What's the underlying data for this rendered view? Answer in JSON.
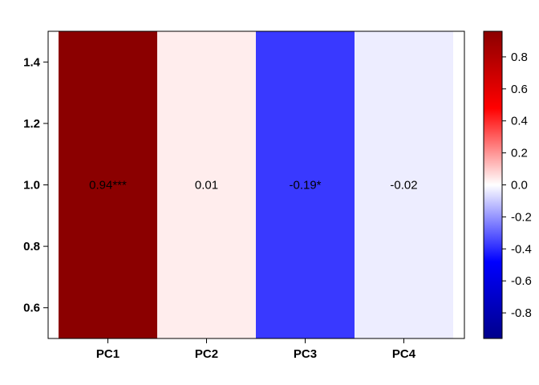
{
  "chart_data": {
    "type": "heatmap",
    "title": "",
    "xlabel": "",
    "ylabel": "",
    "categories": [
      "PC1",
      "PC2",
      "PC3",
      "PC4"
    ],
    "y_value": 1.0,
    "ylim": [
      0.5,
      1.5
    ],
    "y_ticks": [
      "0.6",
      "0.8",
      "1.0",
      "1.2",
      "1.4"
    ],
    "values": [
      0.94,
      0.01,
      -0.19,
      -0.02
    ],
    "cell_labels": [
      "0.94***",
      "0.01",
      "-0.19*",
      "-0.02"
    ],
    "cell_colors": [
      "#8B0000",
      "#FFEDED",
      "#3939FF",
      "#EDEDFF"
    ],
    "colorbar": {
      "range": [
        -0.96,
        0.96
      ],
      "ticks": [
        "-0.8",
        "-0.6",
        "-0.4",
        "-0.2",
        "0.0",
        "0.2",
        "0.4",
        "0.6",
        "0.8"
      ],
      "colors": [
        "#00008B",
        "#0000FF",
        "#FFFFFF",
        "#FF0000",
        "#8B0000"
      ]
    },
    "grid": false,
    "legend": "right colorbar"
  }
}
